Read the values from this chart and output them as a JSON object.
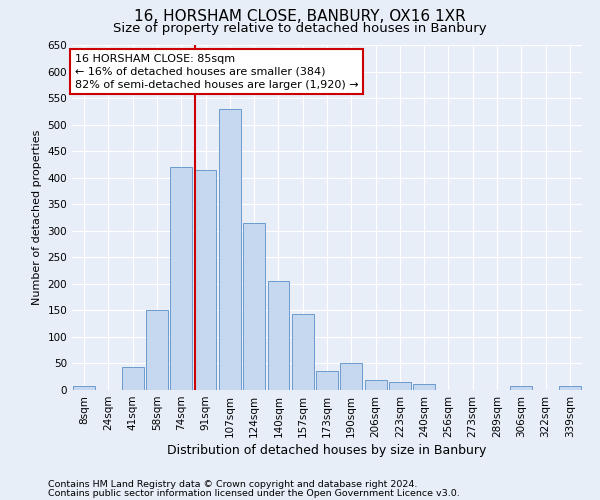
{
  "title": "16, HORSHAM CLOSE, BANBURY, OX16 1XR",
  "subtitle": "Size of property relative to detached houses in Banbury",
  "xlabel": "Distribution of detached houses by size in Banbury",
  "ylabel": "Number of detached properties",
  "categories": [
    "8sqm",
    "24sqm",
    "41sqm",
    "58sqm",
    "74sqm",
    "91sqm",
    "107sqm",
    "124sqm",
    "140sqm",
    "157sqm",
    "173sqm",
    "190sqm",
    "206sqm",
    "223sqm",
    "240sqm",
    "256sqm",
    "273sqm",
    "289sqm",
    "306sqm",
    "322sqm",
    "339sqm"
  ],
  "values": [
    8,
    0,
    44,
    150,
    420,
    415,
    530,
    315,
    205,
    143,
    35,
    50,
    18,
    15,
    12,
    0,
    0,
    0,
    8,
    0,
    8
  ],
  "bar_color": "#c5d8f0",
  "bar_edge_color": "#5b8fc8",
  "bar_edge_width": 0.6,
  "vline_color": "#cc0000",
  "vline_xidx": 5,
  "annotation_line1": "16 HORSHAM CLOSE: 85sqm",
  "annotation_line2": "← 16% of detached houses are smaller (384)",
  "annotation_line3": "82% of semi-detached houses are larger (1,920) →",
  "annotation_box_facecolor": "#ffffff",
  "annotation_box_edgecolor": "#cc0000",
  "ylim": [
    0,
    650
  ],
  "yticks": [
    0,
    50,
    100,
    150,
    200,
    250,
    300,
    350,
    400,
    450,
    500,
    550,
    600,
    650
  ],
  "footer1": "Contains HM Land Registry data © Crown copyright and database right 2024.",
  "footer2": "Contains public sector information licensed under the Open Government Licence v3.0.",
  "bg_color": "#e8eef8",
  "grid_color": "#ffffff",
  "title_fontsize": 11,
  "subtitle_fontsize": 9.5,
  "ylabel_fontsize": 8,
  "xlabel_fontsize": 9,
  "tick_fontsize": 7.5,
  "ann_fontsize": 8,
  "footer_fontsize": 6.8
}
